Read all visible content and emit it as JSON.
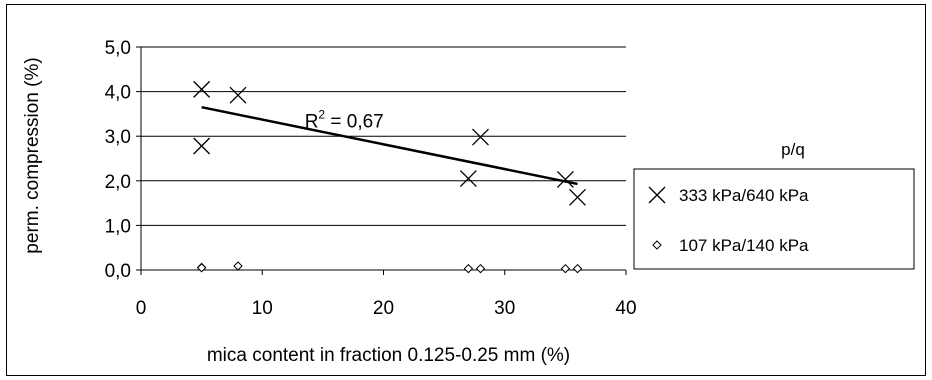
{
  "chart_data": {
    "type": "scatter",
    "xlabel": "mica content in fraction 0.125-0.25 mm (%)",
    "ylabel": "perm. compression (%)",
    "xlim": [
      0,
      40
    ],
    "ylim": [
      0,
      5
    ],
    "x_ticks": [
      {
        "value": 0,
        "label": "0"
      },
      {
        "value": 10,
        "label": "10"
      },
      {
        "value": 20,
        "label": "20"
      },
      {
        "value": 30,
        "label": "30"
      },
      {
        "value": 40,
        "label": "40"
      }
    ],
    "y_ticks": [
      {
        "value": 0,
        "label": "0,0"
      },
      {
        "value": 1,
        "label": "1,0"
      },
      {
        "value": 2,
        "label": "2,0"
      },
      {
        "value": 3,
        "label": "3,0"
      },
      {
        "value": 4,
        "label": "4,0"
      },
      {
        "value": 5,
        "label": "5,0"
      }
    ],
    "grid": {
      "horizontal": true,
      "vertical": false
    },
    "legend": {
      "title": "p/q",
      "position": "right"
    },
    "series": [
      {
        "name": "333 kPa/640 kPa",
        "marker": "x",
        "x": [
          5,
          5,
          8,
          27,
          28,
          35,
          36
        ],
        "y": [
          4.05,
          2.78,
          3.92,
          2.05,
          2.98,
          2.03,
          1.63
        ]
      },
      {
        "name": "107 kPa/140 kPa",
        "marker": "diamond",
        "x": [
          5,
          5,
          8,
          27,
          28,
          35,
          36
        ],
        "y": [
          0.06,
          0.05,
          0.09,
          0.03,
          0.03,
          0.03,
          0.03
        ]
      }
    ],
    "trendline": {
      "series": 0,
      "x": [
        5,
        36
      ],
      "y": [
        3.65,
        1.93
      ]
    },
    "annotation": {
      "prefix": "R",
      "sup": "2",
      "suffix": " = 0,67",
      "x": 13.5,
      "y": 3.2
    }
  }
}
